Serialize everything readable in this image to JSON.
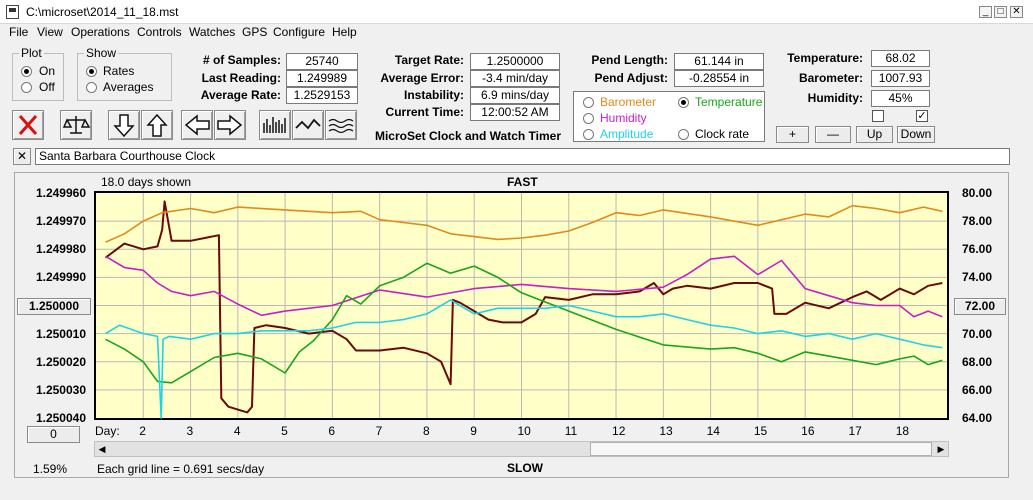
{
  "window": {
    "title": "C:\\microset\\2014_11_18.mst",
    "min": "_",
    "max": "□",
    "close": "✕"
  },
  "menu": [
    "File",
    "View",
    "Operations",
    "Controls",
    "Watches",
    "GPS",
    "Configure",
    "Help"
  ],
  "plot": {
    "title": "Plot",
    "on": "On",
    "off": "Off",
    "selected": "On"
  },
  "show": {
    "title": "Show",
    "rates": "Rates",
    "averages": "Averages",
    "selected": "Rates"
  },
  "stats": {
    "samples_label": "# of Samples:",
    "samples": "25740",
    "last_label": "Last Reading:",
    "last": "1.249989",
    "avg_label": "Average Rate:",
    "avg": "1.2529153"
  },
  "rates": {
    "target_label": "Target Rate:",
    "target": "1.2500000",
    "error_label": "Average Error:",
    "error": "-3.4 min/day",
    "instab_label": "Instability:",
    "instab": "6.9 mins/day",
    "time_label": "Current Time:",
    "time": "12:00:52 AM"
  },
  "pend": {
    "length_label": "Pend Length:",
    "length": "61.144 in",
    "adjust_label": "Pend Adjust:",
    "adjust": "-0.28554 in"
  },
  "env": {
    "temp_label": "Temperature:",
    "temp": "68.02",
    "baro_label": "Barometer:",
    "baro": "1007.93",
    "hum_label": "Humidity:",
    "hum": "45%"
  },
  "sensor_legend": {
    "barometer": "Barometer",
    "temperature": "Temperature",
    "humidity": "Humidity",
    "amplitude": "Amplitude",
    "clock_rate": "Clock rate",
    "selected": "Temperature"
  },
  "colors": {
    "barometer": "#e08a1a",
    "temperature": "#1aa51a",
    "humidity": "#c81ec8",
    "amplitude": "#1ed2e6",
    "clock_rate": "#6b0a0a",
    "plot_bg": "#ffffc8"
  },
  "adjust_buttons": {
    "plus": "+",
    "minus": "—",
    "up": "Up",
    "down": "Down"
  },
  "app_caption": "MicroSet Clock and Watch Timer",
  "toolbar_icons": [
    "delete-x-icon",
    "balance-scale-icon",
    "arrow-down-icon",
    "arrow-up-icon",
    "arrow-left-icon",
    "arrow-right-icon",
    "bar-chart-icon",
    "waveform-icon",
    "dense-waveform-icon"
  ],
  "clock_name": "Santa Barbara Courthouse Clock",
  "clear_name_button": "✕",
  "chart": {
    "days_shown": "18.0 days shown",
    "fast": "FAST",
    "slow": "SLOW",
    "day_label": "Day:",
    "grid_note": "Each grid line = 0.691 secs/day",
    "percent": "1.59%",
    "center_left": "1.250000",
    "center_right": "72.00",
    "left_bottom_btn": "0"
  },
  "chart_data": {
    "type": "line",
    "title": "",
    "x_ticks": [
      "2",
      "3",
      "4",
      "5",
      "6",
      "7",
      "8",
      "9",
      "10",
      "11",
      "12",
      "13",
      "14",
      "15",
      "16",
      "17",
      "18"
    ],
    "xlim": [
      1,
      19
    ],
    "y_left_ticks": [
      "1.249960",
      "1.249970",
      "1.249980",
      "1.249990",
      "1.250000",
      "1.250010",
      "1.250020",
      "1.250030",
      "1.250040"
    ],
    "y_left_range": [
      1.24996,
      1.25004
    ],
    "y_right_ticks": [
      "80.00",
      "78.00",
      "76.00",
      "74.00",
      "72.00",
      "70.00",
      "68.00",
      "66.00",
      "64.00"
    ],
    "y_right_range": [
      80,
      64
    ],
    "grid": true,
    "series": [
      {
        "color": "#6b0a0a",
        "x": [
          1.2,
          1.6,
          2.0,
          2.3,
          2.4,
          2.45,
          2.6,
          3.0,
          3.3,
          3.6,
          3.65,
          3.8,
          4.0,
          4.2,
          4.3,
          4.35,
          4.6,
          5.0,
          5.5,
          6.0,
          6.3,
          6.5,
          7.0,
          7.5,
          8.0,
          8.3,
          8.5,
          8.55,
          8.7,
          9.0,
          9.3,
          9.6,
          10.0,
          10.3,
          10.5,
          11.0,
          11.5,
          12.0,
          12.5,
          12.8,
          13.0,
          13.2,
          13.5,
          14.0,
          14.5,
          15.0,
          15.3,
          15.35,
          15.6,
          16.0,
          16.5,
          17.0,
          17.3,
          17.6,
          18.0,
          18.3,
          18.6,
          18.9
        ],
        "y": [
          1.249983,
          1.249978,
          1.24998,
          1.249979,
          1.249973,
          1.249963,
          1.249977,
          1.249977,
          1.249976,
          1.249975,
          1.250033,
          1.250036,
          1.250037,
          1.250038,
          1.250036,
          1.250008,
          1.250007,
          1.250008,
          1.25001,
          1.250009,
          1.250012,
          1.250016,
          1.250016,
          1.250015,
          1.250017,
          1.25002,
          1.250028,
          1.249998,
          1.249999,
          1.250002,
          1.250005,
          1.250006,
          1.250006,
          1.250003,
          1.249997,
          1.249998,
          1.249996,
          1.249996,
          1.249995,
          1.249992,
          1.249996,
          1.249994,
          1.249993,
          1.249994,
          1.249992,
          1.249992,
          1.249994,
          1.250003,
          1.250003,
          1.249999,
          1.250001,
          1.249997,
          1.249995,
          1.249998,
          1.249994,
          1.249996,
          1.249993,
          1.249992
        ]
      },
      {
        "color": "#e08a1a",
        "x": [
          1.2,
          1.6,
          2.0,
          2.4,
          3.0,
          3.5,
          4.0,
          5.0,
          6.0,
          6.6,
          7.0,
          7.5,
          8.0,
          8.5,
          9.0,
          9.5,
          10.0,
          10.5,
          11.0,
          11.5,
          12.0,
          12.5,
          13.0,
          14.0,
          15.0,
          16.0,
          16.5,
          17.0,
          17.5,
          18.0,
          18.5,
          18.9
        ],
        "y": [
          76.5,
          77.1,
          78.0,
          78.6,
          78.9,
          78.6,
          79.0,
          78.8,
          78.6,
          78.7,
          78.1,
          77.9,
          77.7,
          77.1,
          76.9,
          76.7,
          76.8,
          77.0,
          77.3,
          77.9,
          78.6,
          78.4,
          78.8,
          78.3,
          77.7,
          78.5,
          78.3,
          79.1,
          78.9,
          78.6,
          79.0,
          78.7
        ]
      },
      {
        "color": "#c81ec8",
        "x": [
          1.2,
          1.6,
          2.0,
          2.3,
          2.6,
          3.0,
          3.5,
          4.0,
          4.5,
          5.0,
          6.0,
          7.0,
          8.0,
          9.0,
          10.0,
          11.0,
          12.0,
          13.0,
          13.5,
          14.0,
          14.5,
          15.0,
          15.5,
          16.0,
          16.5,
          17.0,
          17.5,
          18.0,
          18.3,
          18.6,
          18.9
        ],
        "y": [
          75.5,
          74.7,
          74.5,
          73.6,
          73.0,
          72.7,
          73.0,
          72.1,
          71.3,
          71.6,
          72.0,
          73.1,
          72.6,
          73.2,
          73.5,
          73.2,
          73.0,
          73.3,
          74.2,
          75.3,
          75.5,
          74.2,
          75.2,
          73.2,
          72.7,
          72.2,
          72.0,
          72.0,
          71.2,
          71.6,
          71.2
        ]
      },
      {
        "color": "#1aa51a",
        "x": [
          1.2,
          1.6,
          2.0,
          2.3,
          2.6,
          3.0,
          3.5,
          4.0,
          4.5,
          5.0,
          5.3,
          5.6,
          6.0,
          6.3,
          6.6,
          7.0,
          7.5,
          8.0,
          8.5,
          9.0,
          9.5,
          10.0,
          11.0,
          12.0,
          13.0,
          14.0,
          14.5,
          15.0,
          15.5,
          16.0,
          16.5,
          17.0,
          17.5,
          18.0,
          18.3,
          18.6,
          18.9
        ],
        "y": [
          69.6,
          68.9,
          68.0,
          66.6,
          66.5,
          67.3,
          68.3,
          68.6,
          68.2,
          67.2,
          68.7,
          69.5,
          71.0,
          72.7,
          72.1,
          73.4,
          74.0,
          75.0,
          74.3,
          74.8,
          74.0,
          72.9,
          71.6,
          70.3,
          69.2,
          68.9,
          69.0,
          68.6,
          68.0,
          68.7,
          68.4,
          68.1,
          67.8,
          68.2,
          68.4,
          67.8,
          68.1
        ]
      },
      {
        "color": "#1ed2e6",
        "x": [
          1.2,
          1.5,
          2.0,
          2.3,
          2.38,
          2.42,
          2.55,
          3.0,
          3.5,
          4.0,
          4.5,
          5.0,
          5.5,
          6.0,
          6.5,
          7.0,
          7.5,
          8.0,
          8.5,
          9.0,
          9.5,
          10.0,
          10.5,
          11.0,
          11.5,
          12.0,
          12.5,
          13.0,
          13.5,
          14.0,
          14.5,
          15.0,
          15.5,
          16.0,
          16.5,
          17.0,
          17.5,
          18.0,
          18.5,
          18.9
        ],
        "y": [
          1.25001,
          1.250007,
          1.25001,
          1.250011,
          1.25004,
          1.250012,
          1.250011,
          1.250012,
          1.25001,
          1.25001,
          1.250009,
          1.250009,
          1.250009,
          1.250008,
          1.250006,
          1.250006,
          1.250005,
          1.250003,
          1.249998,
          1.250003,
          1.250001,
          1.250001,
          1.250001,
          1.25,
          1.250002,
          1.250004,
          1.250004,
          1.250003,
          1.250005,
          1.250007,
          1.250008,
          1.25001,
          1.250009,
          1.250011,
          1.25001,
          1.250012,
          1.25001,
          1.250012,
          1.250014,
          1.250015
        ]
      }
    ]
  }
}
